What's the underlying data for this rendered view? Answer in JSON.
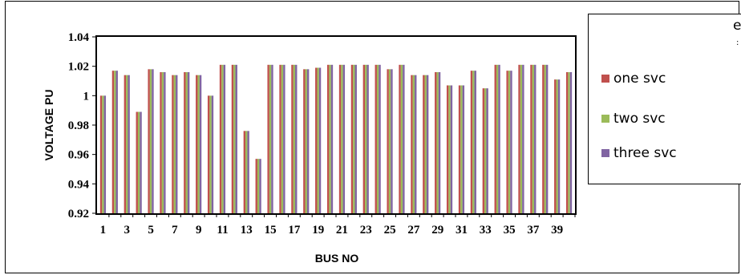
{
  "chart_data": {
    "type": "bar",
    "xlabel": "BUS NO",
    "ylabel": "VOLTAGE  PU",
    "ylim": [
      0.92,
      1.04
    ],
    "yticks": [
      "0.92",
      "0.94",
      "0.96",
      "0.98",
      "1",
      "1.02",
      "1.04"
    ],
    "categories": [
      "1",
      "2",
      "3",
      "4",
      "5",
      "6",
      "7",
      "8",
      "9",
      "10",
      "11",
      "12",
      "13",
      "14",
      "15",
      "16",
      "17",
      "18",
      "19",
      "20",
      "21",
      "22",
      "23",
      "24",
      "25",
      "26",
      "27",
      "28",
      "29",
      "30",
      "31",
      "32",
      "33",
      "34",
      "35",
      "36",
      "37",
      "38",
      "39",
      "40"
    ],
    "xtick_labels": [
      "1",
      "3",
      "5",
      "7",
      "9",
      "11",
      "13",
      "15",
      "17",
      "19",
      "21",
      "23",
      "25",
      "27",
      "29",
      "31",
      "33",
      "35",
      "37",
      "39"
    ],
    "grid": false,
    "legend_position": "right",
    "series": [
      {
        "name": "one svc",
        "color": "#c0504d",
        "values": [
          1.0,
          1.017,
          1.014,
          0.989,
          1.018,
          1.016,
          1.014,
          1.016,
          1.014,
          1.0,
          1.021,
          1.021,
          0.976,
          0.957,
          1.021,
          1.021,
          1.021,
          1.018,
          1.019,
          1.021,
          1.021,
          1.021,
          1.021,
          1.021,
          1.018,
          1.021,
          1.014,
          1.014,
          1.016,
          1.007,
          1.007,
          1.017,
          1.005,
          1.021,
          1.017,
          1.021,
          1.021,
          1.021,
          1.011,
          1.016
        ]
      },
      {
        "name": "two svc",
        "color": "#9bbb59",
        "values": [
          1.0,
          1.017,
          1.014,
          0.989,
          1.018,
          1.016,
          1.014,
          1.016,
          1.014,
          1.0,
          1.021,
          1.021,
          0.976,
          0.957,
          1.021,
          1.021,
          1.021,
          1.018,
          1.019,
          1.021,
          1.021,
          1.021,
          1.021,
          1.021,
          1.018,
          1.021,
          1.014,
          1.014,
          1.016,
          1.007,
          1.007,
          1.017,
          1.005,
          1.021,
          1.017,
          1.021,
          1.021,
          1.021,
          1.011,
          1.016
        ]
      },
      {
        "name": "three svc",
        "color": "#8064a2",
        "values": [
          1.0,
          1.017,
          1.014,
          0.989,
          1.018,
          1.016,
          1.014,
          1.016,
          1.014,
          1.0,
          1.021,
          1.021,
          0.976,
          0.957,
          1.021,
          1.021,
          1.021,
          1.018,
          1.019,
          1.021,
          1.021,
          1.021,
          1.021,
          1.021,
          1.018,
          1.021,
          1.014,
          1.014,
          1.016,
          1.007,
          1.007,
          1.017,
          1.005,
          1.021,
          1.017,
          1.021,
          1.021,
          1.021,
          1.011,
          1.016
        ]
      }
    ]
  },
  "legend": {
    "items": [
      {
        "label": "one svc",
        "color": "#c0504d"
      },
      {
        "label": "two svc",
        "color": "#9bbb59"
      },
      {
        "label": "three svc",
        "color": "#8064a2"
      }
    ],
    "fragment_top": "e",
    "fragment_mid": ":"
  }
}
